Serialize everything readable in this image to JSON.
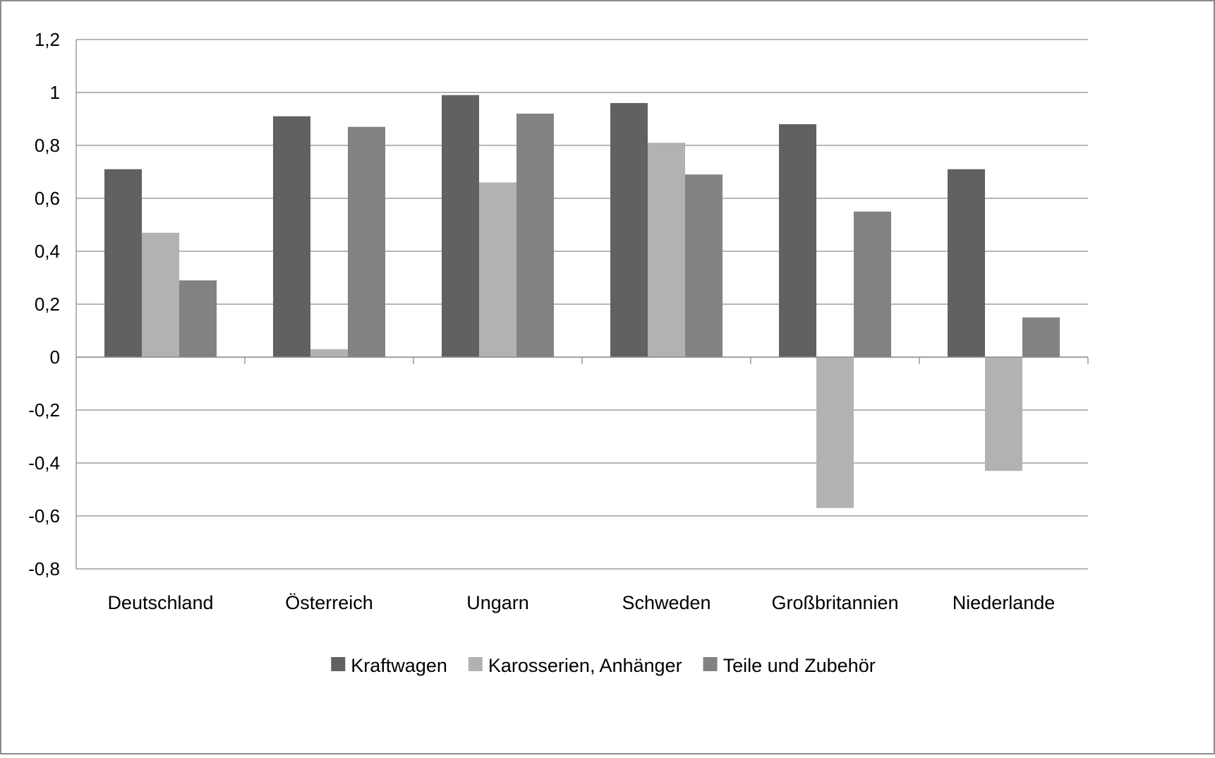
{
  "chart_data": {
    "type": "bar",
    "categories": [
      "Deutschland",
      "Österreich",
      "Ungarn",
      "Schweden",
      "Großbritannien",
      "Niederlande"
    ],
    "series": [
      {
        "name": "Kraftwagen",
        "color": "#616161",
        "values": [
          0.71,
          0.91,
          0.99,
          0.96,
          0.88,
          0.71
        ]
      },
      {
        "name": "Karosserien, Anhänger",
        "color": "#b2b2b2",
        "values": [
          0.47,
          0.03,
          0.66,
          0.81,
          -0.57,
          -0.43
        ]
      },
      {
        "name": "Teile und Zubehör",
        "color": "#828282",
        "values": [
          0.29,
          0.87,
          0.92,
          0.69,
          0.55,
          0.15
        ]
      }
    ],
    "ylim": [
      -0.8,
      1.2
    ],
    "yticks": [
      "1,2",
      "1",
      "0,8",
      "0,6",
      "0,4",
      "0,2",
      "0",
      "-0,2",
      "-0,4",
      "-0,6",
      "-0,8"
    ],
    "ytick_values": [
      1.2,
      1.0,
      0.8,
      0.6,
      0.4,
      0.2,
      0.0,
      -0.2,
      -0.4,
      -0.6,
      -0.8
    ],
    "grid": true,
    "legend_position": "bottom",
    "title": "",
    "xlabel": "",
    "ylabel": ""
  }
}
